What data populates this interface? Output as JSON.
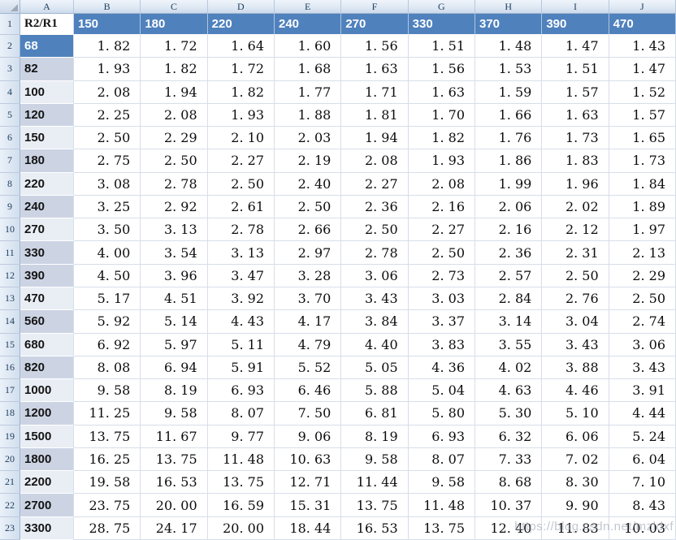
{
  "columns": {
    "letters": [
      "A",
      "B",
      "C",
      "D",
      "E",
      "F",
      "G",
      "H",
      "I",
      "J"
    ]
  },
  "table": {
    "header": {
      "row_number": "1",
      "label_cell": "R2/R1",
      "values": [
        "150",
        "180",
        "220",
        "240",
        "270",
        "330",
        "370",
        "390",
        "470"
      ]
    },
    "rows": [
      {
        "row_number": "2",
        "label": "68",
        "band": "blue",
        "values": [
          "1. 82",
          "1. 72",
          "1. 64",
          "1. 60",
          "1. 56",
          "1. 51",
          "1. 48",
          "1. 47",
          "1. 43"
        ]
      },
      {
        "row_number": "3",
        "label": "82",
        "band": "dark",
        "values": [
          "1. 93",
          "1. 82",
          "1. 72",
          "1. 68",
          "1. 63",
          "1. 56",
          "1. 53",
          "1. 51",
          "1. 47"
        ]
      },
      {
        "row_number": "4",
        "label": "100",
        "band": "light",
        "values": [
          "2. 08",
          "1. 94",
          "1. 82",
          "1. 77",
          "1. 71",
          "1. 63",
          "1. 59",
          "1. 57",
          "1. 52"
        ]
      },
      {
        "row_number": "5",
        "label": "120",
        "band": "dark",
        "values": [
          "2. 25",
          "2. 08",
          "1. 93",
          "1. 88",
          "1. 81",
          "1. 70",
          "1. 66",
          "1. 63",
          "1. 57"
        ]
      },
      {
        "row_number": "6",
        "label": "150",
        "band": "light",
        "values": [
          "2. 50",
          "2. 29",
          "2. 10",
          "2. 03",
          "1. 94",
          "1. 82",
          "1. 76",
          "1. 73",
          "1. 65"
        ]
      },
      {
        "row_number": "7",
        "label": "180",
        "band": "dark",
        "values": [
          "2. 75",
          "2. 50",
          "2. 27",
          "2. 19",
          "2. 08",
          "1. 93",
          "1. 86",
          "1. 83",
          "1. 73"
        ]
      },
      {
        "row_number": "8",
        "label": "220",
        "band": "light",
        "values": [
          "3. 08",
          "2. 78",
          "2. 50",
          "2. 40",
          "2. 27",
          "2. 08",
          "1. 99",
          "1. 96",
          "1. 84"
        ]
      },
      {
        "row_number": "9",
        "label": "240",
        "band": "dark",
        "values": [
          "3. 25",
          "2. 92",
          "2. 61",
          "2. 50",
          "2. 36",
          "2. 16",
          "2. 06",
          "2. 02",
          "1. 89"
        ]
      },
      {
        "row_number": "10",
        "label": "270",
        "band": "light",
        "values": [
          "3. 50",
          "3. 13",
          "2. 78",
          "2. 66",
          "2. 50",
          "2. 27",
          "2. 16",
          "2. 12",
          "1. 97"
        ]
      },
      {
        "row_number": "11",
        "label": "330",
        "band": "dark",
        "values": [
          "4. 00",
          "3. 54",
          "3. 13",
          "2. 97",
          "2. 78",
          "2. 50",
          "2. 36",
          "2. 31",
          "2. 13"
        ]
      },
      {
        "row_number": "12",
        "label": "390",
        "band": "dark",
        "values": [
          "4. 50",
          "3. 96",
          "3. 47",
          "3. 28",
          "3. 06",
          "2. 73",
          "2. 57",
          "2. 50",
          "2. 29"
        ]
      },
      {
        "row_number": "13",
        "label": "470",
        "band": "light",
        "values": [
          "5. 17",
          "4. 51",
          "3. 92",
          "3. 70",
          "3. 43",
          "3. 03",
          "2. 84",
          "2. 76",
          "2. 50"
        ]
      },
      {
        "row_number": "14",
        "label": "560",
        "band": "dark",
        "values": [
          "5. 92",
          "5. 14",
          "4. 43",
          "4. 17",
          "3. 84",
          "3. 37",
          "3. 14",
          "3. 04",
          "2. 74"
        ]
      },
      {
        "row_number": "15",
        "label": "680",
        "band": "light",
        "values": [
          "6. 92",
          "5. 97",
          "5. 11",
          "4. 79",
          "4. 40",
          "3. 83",
          "3. 55",
          "3. 43",
          "3. 06"
        ]
      },
      {
        "row_number": "16",
        "label": "820",
        "band": "dark",
        "values": [
          "8. 08",
          "6. 94",
          "5. 91",
          "5. 52",
          "5. 05",
          "4. 36",
          "4. 02",
          "3. 88",
          "3. 43"
        ]
      },
      {
        "row_number": "17",
        "label": "1000",
        "band": "light",
        "values": [
          "9. 58",
          "8. 19",
          "6. 93",
          "6. 46",
          "5. 88",
          "5. 04",
          "4. 63",
          "4. 46",
          "3. 91"
        ]
      },
      {
        "row_number": "18",
        "label": "1200",
        "band": "dark",
        "values": [
          "11. 25",
          "9. 58",
          "8. 07",
          "7. 50",
          "6. 81",
          "5. 80",
          "5. 30",
          "5. 10",
          "4. 44"
        ]
      },
      {
        "row_number": "19",
        "label": "1500",
        "band": "light",
        "values": [
          "13. 75",
          "11. 67",
          "9. 77",
          "9. 06",
          "8. 19",
          "6. 93",
          "6. 32",
          "6. 06",
          "5. 24"
        ]
      },
      {
        "row_number": "20",
        "label": "1800",
        "band": "dark",
        "values": [
          "16. 25",
          "13. 75",
          "11. 48",
          "10. 63",
          "9. 58",
          "8. 07",
          "7. 33",
          "7. 02",
          "6. 04"
        ]
      },
      {
        "row_number": "21",
        "label": "2200",
        "band": "light",
        "values": [
          "19. 58",
          "16. 53",
          "13. 75",
          "12. 71",
          "11. 44",
          "9. 58",
          "8. 68",
          "8. 30",
          "7. 10"
        ]
      },
      {
        "row_number": "22",
        "label": "2700",
        "band": "dark",
        "values": [
          "23. 75",
          "20. 00",
          "16. 59",
          "15. 31",
          "13. 75",
          "11. 48",
          "10. 37",
          "9. 90",
          "8. 43"
        ]
      },
      {
        "row_number": "23",
        "label": "3300",
        "band": "light",
        "values": [
          "28. 75",
          "24. 17",
          "20. 00",
          "18. 44",
          "16. 53",
          "13. 75",
          "12. 40",
          "11. 83",
          "10. 03"
        ]
      }
    ]
  },
  "watermark": {
    "text": "https://blog.csdn.net/mzldxf"
  },
  "colors": {
    "header_blue": "#4f81bd",
    "band_dark": "#ccd4e4",
    "band_light": "#e9eef5",
    "gridline": "#d7dee9"
  }
}
